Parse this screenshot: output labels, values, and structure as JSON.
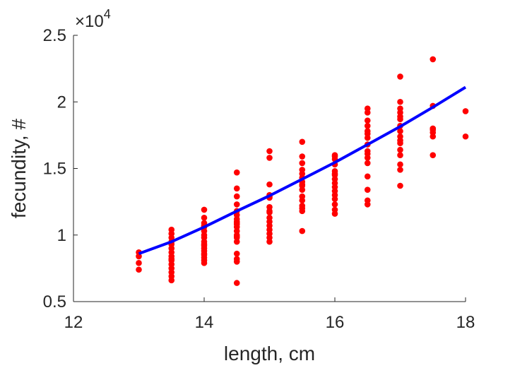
{
  "chart_data": {
    "type": "scatter",
    "xlabel": "length, cm",
    "ylabel": "fecundity, #",
    "xlim": [
      12,
      18
    ],
    "ylim": [
      5000,
      25000
    ],
    "x_ticks": [
      12,
      14,
      16,
      18
    ],
    "x_tick_labels": [
      "12",
      "14",
      "16",
      "18"
    ],
    "y_ticks": [
      5000,
      10000,
      15000,
      20000,
      25000
    ],
    "y_tick_labels": [
      "0.5",
      "1",
      "1.5",
      "2",
      "2.5"
    ],
    "y_exponent_label": {
      "base": "×10",
      "power": "4"
    },
    "grid": false,
    "box": "left-bottom",
    "colors": {
      "points": "#ff0000",
      "fit_line": "#0000ff",
      "axis": "#262626"
    },
    "series": [
      {
        "kind": "points",
        "x": [
          13,
          13,
          13,
          13,
          13.5,
          13.5,
          13.5,
          13.5,
          13.5,
          13.5,
          13.5,
          13.5,
          13.5,
          13.5,
          13.5,
          13.5,
          13.5,
          13.5,
          13.5,
          14,
          14,
          14,
          14,
          14,
          14,
          14,
          14,
          14,
          14,
          14,
          14,
          14,
          14,
          14,
          14,
          14,
          14,
          14.5,
          14.5,
          14.5,
          14.5,
          14.5,
          14.5,
          14.5,
          14.5,
          14.5,
          14.5,
          14.5,
          14.5,
          14.5,
          14.5,
          14.5,
          14.5,
          14.5,
          14.5,
          14.5,
          14.5,
          15,
          15,
          15,
          15,
          15,
          15,
          15,
          15,
          15,
          15,
          15,
          15,
          15,
          15,
          15,
          15,
          15.5,
          15.5,
          15.5,
          15.5,
          15.5,
          15.5,
          15.5,
          15.5,
          15.5,
          15.5,
          15.5,
          15.5,
          15.5,
          15.5,
          15.5,
          15.5,
          16,
          16,
          16,
          16,
          16,
          16,
          16,
          16,
          16,
          16,
          16,
          16,
          16,
          16,
          16,
          16,
          16.5,
          16.5,
          16.5,
          16.5,
          16.5,
          16.5,
          16.5,
          16.5,
          16.5,
          16.5,
          16.5,
          16.5,
          16.5,
          16.5,
          16.5,
          16.5,
          17,
          17,
          17,
          17,
          17,
          17,
          17,
          17,
          17,
          17,
          17,
          17,
          17,
          17,
          17,
          17,
          17.5,
          17.5,
          17.5,
          17.5,
          17.5,
          17.5,
          17.5,
          18,
          18
        ],
        "y": [
          8700,
          8400,
          7900,
          7400,
          10400,
          10100,
          9800,
          9300,
          9000,
          8700,
          8400,
          8100,
          7800,
          7500,
          7200,
          6900,
          6600,
          8200,
          9500,
          11900,
          11300,
          10900,
          10600,
          10300,
          10000,
          9800,
          9500,
          9300,
          9000,
          8800,
          8500,
          8300,
          8100,
          7900,
          10700,
          9200,
          8600,
          14700,
          13500,
          12900,
          12300,
          11800,
          11500,
          11200,
          10900,
          10600,
          10300,
          10000,
          9800,
          9500,
          8600,
          8200,
          8000,
          6400,
          11000,
          10800,
          9900,
          16300,
          15800,
          13800,
          13000,
          12800,
          12100,
          11700,
          11300,
          11000,
          10700,
          10400,
          10100,
          9800,
          9500,
          12900,
          11800,
          17000,
          15900,
          15400,
          14900,
          14600,
          14300,
          14000,
          13700,
          13400,
          12900,
          12600,
          12200,
          12000,
          11800,
          10300,
          13800,
          16000,
          15700,
          15300,
          14800,
          14500,
          14200,
          13900,
          13600,
          13300,
          13000,
          12700,
          12300,
          11900,
          11600,
          15900,
          14600,
          19500,
          19200,
          18600,
          18200,
          17800,
          17300,
          16800,
          16300,
          15800,
          15400,
          14400,
          13400,
          12600,
          12300,
          17600,
          16100,
          21900,
          20000,
          19200,
          18700,
          18200,
          17800,
          17400,
          16900,
          16400,
          16000,
          15300,
          14900,
          13700,
          19500,
          17100,
          18900,
          23200,
          19700,
          18000,
          17700,
          17400,
          16000,
          17900,
          19300,
          17400
        ]
      },
      {
        "kind": "line",
        "x": [
          13,
          13.5,
          14,
          14.5,
          15,
          15.5,
          16,
          16.5,
          17,
          17.5,
          18
        ],
        "y": [
          8600,
          9500,
          10600,
          11800,
          12950,
          14200,
          15450,
          16800,
          18150,
          19600,
          21100
        ]
      }
    ]
  }
}
